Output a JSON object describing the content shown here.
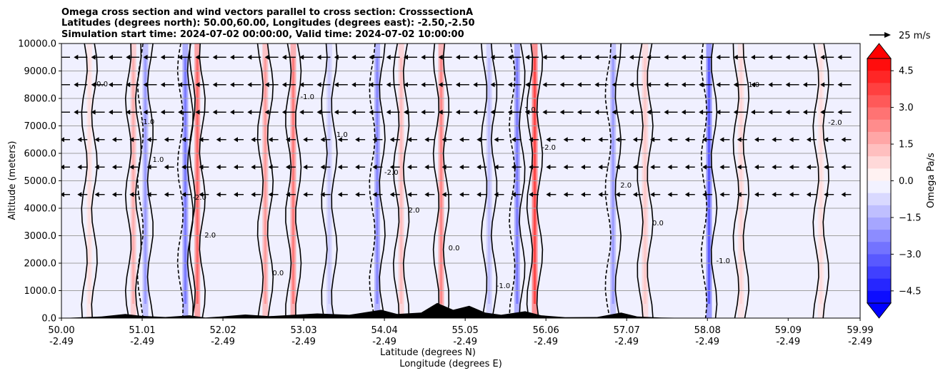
{
  "chart_data": {
    "type": "heatmap",
    "title_lines": [
      "Omega cross section and wind vectors parallel to cross section: CrosssectionA",
      "Latitudes (degrees north): 50.00,60.00, Longitudes (degrees east): -2.50,-2.50",
      "Simulation start time: 2024-07-02 00:00:00, Valid time: 2024-07-02 10:00:00"
    ],
    "ylabel": "Altitude (meters)",
    "xlabel_line1": "Latitude (degrees N)",
    "xlabel_line2": "Longitude (degrees E)",
    "x_range": [
      50.0,
      59.99
    ],
    "ylim": [
      0,
      10000
    ],
    "y_ticks": [
      0,
      1000,
      2000,
      3000,
      4000,
      5000,
      6000,
      7000,
      8000,
      9000,
      10000
    ],
    "y_tick_labels": [
      "0.0",
      "1000.0",
      "2000.0",
      "3000.0",
      "4000.0",
      "5000.0",
      "6000.0",
      "7000.0",
      "8000.0",
      "9000.0",
      "10000.0"
    ],
    "x_ticks": [
      {
        "lat": "50.00",
        "lon": "-2.49",
        "value": 50.0
      },
      {
        "lat": "51.01",
        "lon": "-2.49",
        "value": 51.01
      },
      {
        "lat": "52.02",
        "lon": "-2.49",
        "value": 52.02
      },
      {
        "lat": "53.03",
        "lon": "-2.49",
        "value": 53.03
      },
      {
        "lat": "54.04",
        "lon": "-2.49",
        "value": 54.04
      },
      {
        "lat": "55.05",
        "lon": "-2.49",
        "value": 55.05
      },
      {
        "lat": "56.06",
        "lon": "-2.49",
        "value": 56.06
      },
      {
        "lat": "57.07",
        "lon": "-2.49",
        "value": 57.07
      },
      {
        "lat": "58.08",
        "lon": "-2.49",
        "value": 58.08
      },
      {
        "lat": "59.09",
        "lon": "-2.49",
        "value": 59.09
      },
      {
        "lat": "59.99",
        "lon": "-2.49",
        "value": 59.99
      }
    ],
    "grid": "horizontal",
    "colorbar": {
      "label": "Omega Pa/s",
      "range": [
        -5.0,
        5.0
      ],
      "ticks": [
        4.5,
        3.0,
        1.5,
        0.0,
        -1.5,
        -3.0,
        -4.5
      ],
      "tick_labels": [
        "4.5",
        "3.0",
        "1.5",
        "0.0",
        "−1.5",
        "−3.0",
        "−4.5"
      ],
      "extend": "both",
      "colormap": "bwr"
    },
    "vector_key": {
      "label": "25 m/s",
      "speed": 25
    },
    "contour_levels": [
      -2.0,
      -1.0,
      0.0,
      1.0,
      2.0
    ],
    "contour_labels": [
      "0.0",
      "-1.0",
      "1.0",
      "-2.0",
      "2.0"
    ],
    "omega_bands": [
      {
        "lat": 50.35,
        "omega": 0.5,
        "width": 0.06
      },
      {
        "lat": 50.9,
        "omega": 1.2,
        "width": 0.05
      },
      {
        "lat": 51.05,
        "omega": -1.5,
        "width": 0.05
      },
      {
        "lat": 51.55,
        "omega": -2.0,
        "width": 0.05
      },
      {
        "lat": 51.7,
        "omega": 2.3,
        "width": 0.04
      },
      {
        "lat": 52.55,
        "omega": 1.5,
        "width": 0.07
      },
      {
        "lat": 52.9,
        "omega": 2.0,
        "width": 0.06
      },
      {
        "lat": 53.35,
        "omega": -0.8,
        "width": 0.06
      },
      {
        "lat": 53.95,
        "omega": -1.8,
        "width": 0.05
      },
      {
        "lat": 54.25,
        "omega": 1.0,
        "width": 0.05
      },
      {
        "lat": 54.75,
        "omega": 1.8,
        "width": 0.05
      },
      {
        "lat": 55.35,
        "omega": -1.0,
        "width": 0.06
      },
      {
        "lat": 55.7,
        "omega": -2.0,
        "width": 0.05
      },
      {
        "lat": 55.92,
        "omega": 2.8,
        "width": 0.05
      },
      {
        "lat": 56.9,
        "omega": -1.5,
        "width": 0.06
      },
      {
        "lat": 57.3,
        "omega": 0.8,
        "width": 0.08
      },
      {
        "lat": 58.1,
        "omega": -2.5,
        "width": 0.04
      },
      {
        "lat": 58.5,
        "omega": 0.6,
        "width": 0.08
      },
      {
        "lat": 59.5,
        "omega": 0.5,
        "width": 0.08
      }
    ],
    "terrain": [
      {
        "lat": 50.0,
        "alt": 0
      },
      {
        "lat": 50.5,
        "alt": 60
      },
      {
        "lat": 50.8,
        "alt": 150
      },
      {
        "lat": 51.0,
        "alt": 80
      },
      {
        "lat": 51.3,
        "alt": 40
      },
      {
        "lat": 51.6,
        "alt": 100
      },
      {
        "lat": 51.8,
        "alt": 20
      },
      {
        "lat": 52.0,
        "alt": 60
      },
      {
        "lat": 52.3,
        "alt": 130
      },
      {
        "lat": 52.6,
        "alt": 70
      },
      {
        "lat": 52.9,
        "alt": 120
      },
      {
        "lat": 53.2,
        "alt": 170
      },
      {
        "lat": 53.6,
        "alt": 120
      },
      {
        "lat": 54.0,
        "alt": 300
      },
      {
        "lat": 54.2,
        "alt": 150
      },
      {
        "lat": 54.5,
        "alt": 200
      },
      {
        "lat": 54.7,
        "alt": 550
      },
      {
        "lat": 54.9,
        "alt": 300
      },
      {
        "lat": 55.1,
        "alt": 450
      },
      {
        "lat": 55.3,
        "alt": 200
      },
      {
        "lat": 55.5,
        "alt": 120
      },
      {
        "lat": 55.8,
        "alt": 250
      },
      {
        "lat": 56.0,
        "alt": 100
      },
      {
        "lat": 56.3,
        "alt": 30
      },
      {
        "lat": 56.7,
        "alt": 40
      },
      {
        "lat": 57.0,
        "alt": 200
      },
      {
        "lat": 57.2,
        "alt": 60
      },
      {
        "lat": 57.5,
        "alt": 20
      },
      {
        "lat": 58.0,
        "alt": 0
      },
      {
        "lat": 59.99,
        "alt": 0
      }
    ]
  }
}
